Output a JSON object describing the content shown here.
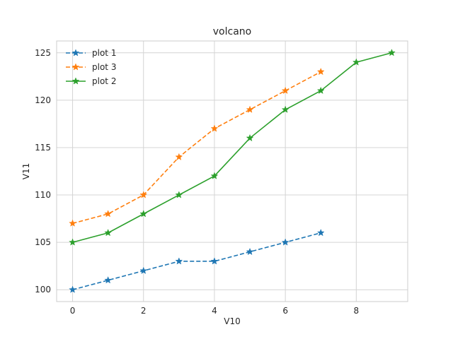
{
  "chart_data": {
    "type": "line",
    "title": "volcano",
    "xlabel": "V10",
    "ylabel": "V11",
    "xlim": [
      -0.45,
      9.45
    ],
    "ylim": [
      98.75,
      126.25
    ],
    "xticks": [
      0,
      2,
      4,
      6,
      8
    ],
    "yticks": [
      100,
      105,
      110,
      115,
      120,
      125
    ],
    "grid": true,
    "legend_position": "top-left",
    "series": [
      {
        "name": "plot 1",
        "color": "#1f77b4",
        "linestyle": "dashed",
        "marker": "star",
        "x": [
          0,
          1,
          2,
          3,
          4,
          5,
          6,
          7
        ],
        "y": [
          100,
          101,
          102,
          103,
          103,
          104,
          105,
          106
        ]
      },
      {
        "name": "plot 3",
        "color": "#ff7f0e",
        "linestyle": "dashed",
        "marker": "star",
        "x": [
          0,
          1,
          2,
          3,
          4,
          5,
          6,
          7
        ],
        "y": [
          107,
          108,
          110,
          114,
          117,
          119,
          121,
          123
        ]
      },
      {
        "name": "plot 2",
        "color": "#2ca02c",
        "linestyle": "solid",
        "marker": "star",
        "x": [
          0,
          1,
          2,
          3,
          4,
          5,
          6,
          7,
          8,
          9
        ],
        "y": [
          105,
          106,
          108,
          110,
          112,
          116,
          119,
          121,
          124,
          125
        ]
      }
    ]
  }
}
